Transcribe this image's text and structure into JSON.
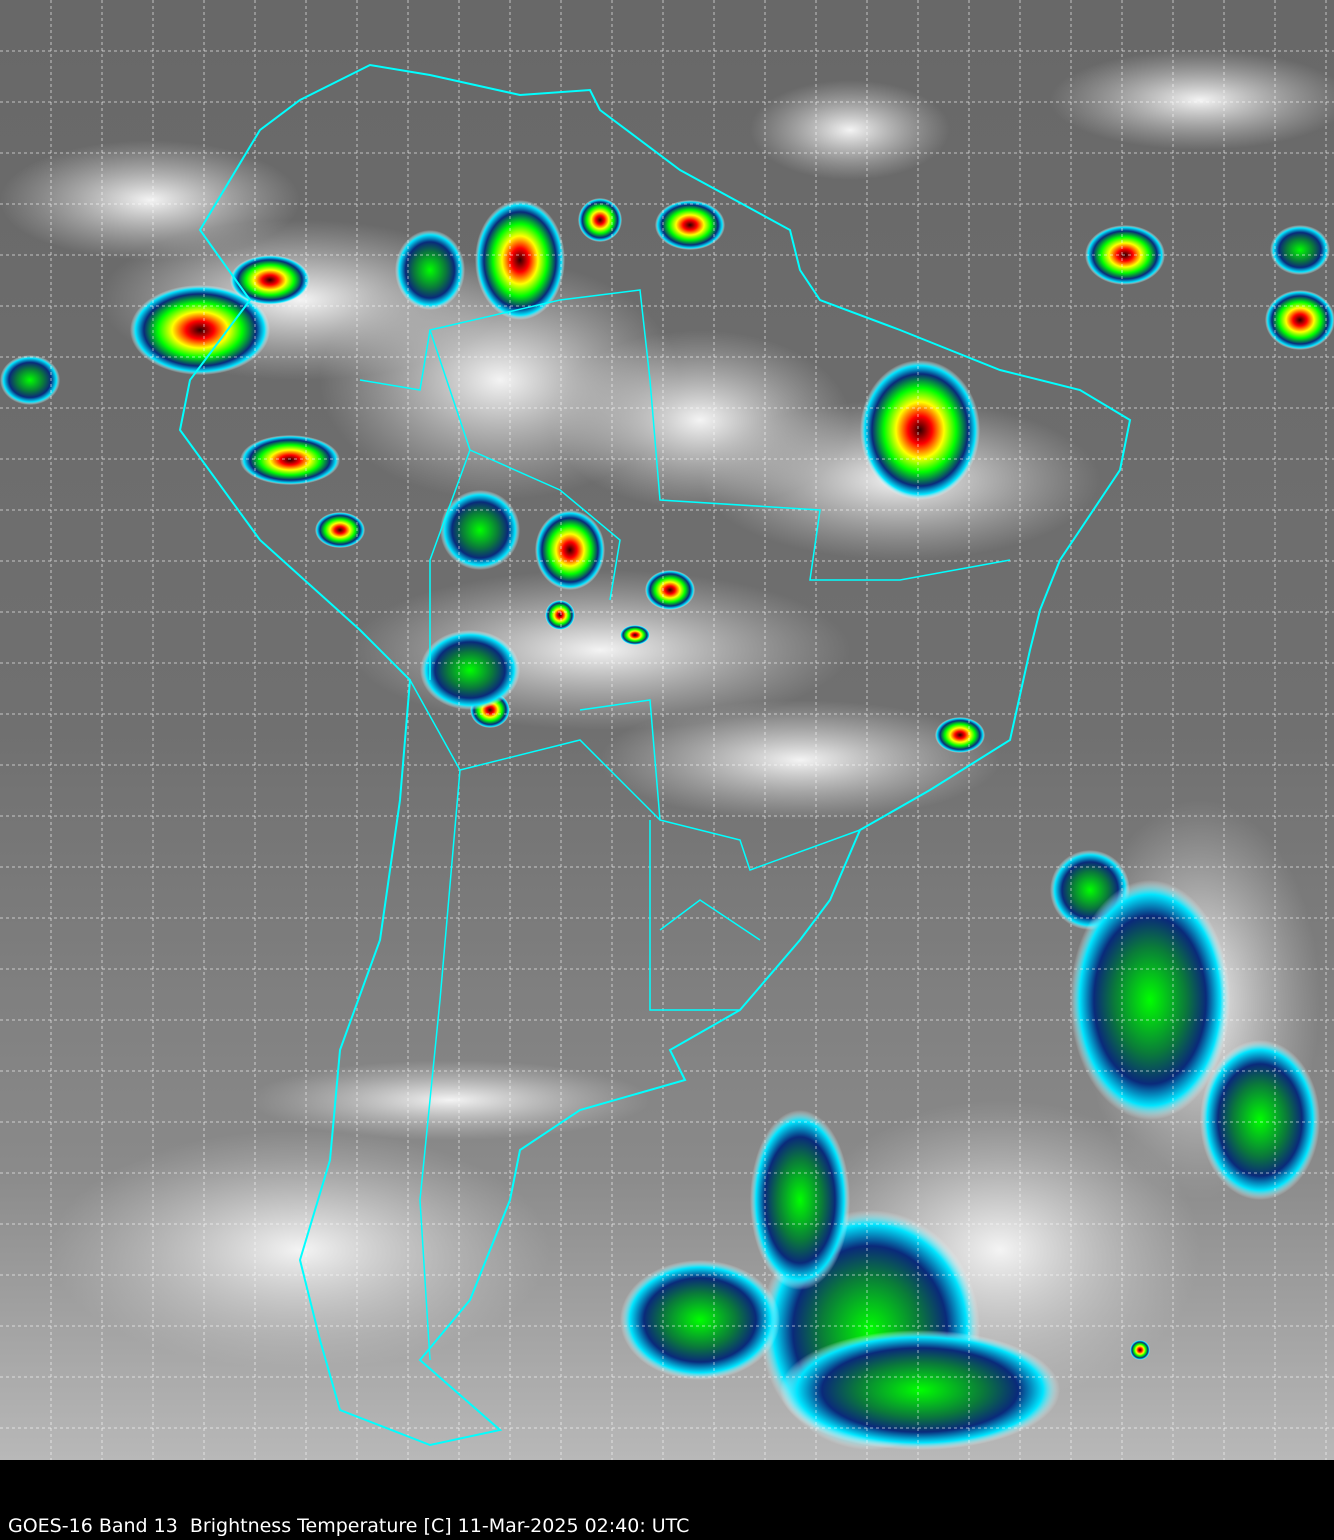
{
  "caption": "GOES-16 Band 13  Brightness Temperature [C] 11-Mar-2025 02:40: UTC",
  "colors": {
    "background": "#000000",
    "coastline": "#00ffff",
    "gridline": "#ffffff",
    "ocean_cloudfree": "#6e6e6e",
    "cold_cloud_scale": [
      "#ffffff",
      "#00e5ff",
      "#0a2a7a",
      "#00ff00",
      "#ffff00",
      "#ff0000",
      "#300000"
    ]
  },
  "map": {
    "region": "South America",
    "overlays": [
      "country-borders",
      "state-borders",
      "lat-lon-grid"
    ]
  }
}
